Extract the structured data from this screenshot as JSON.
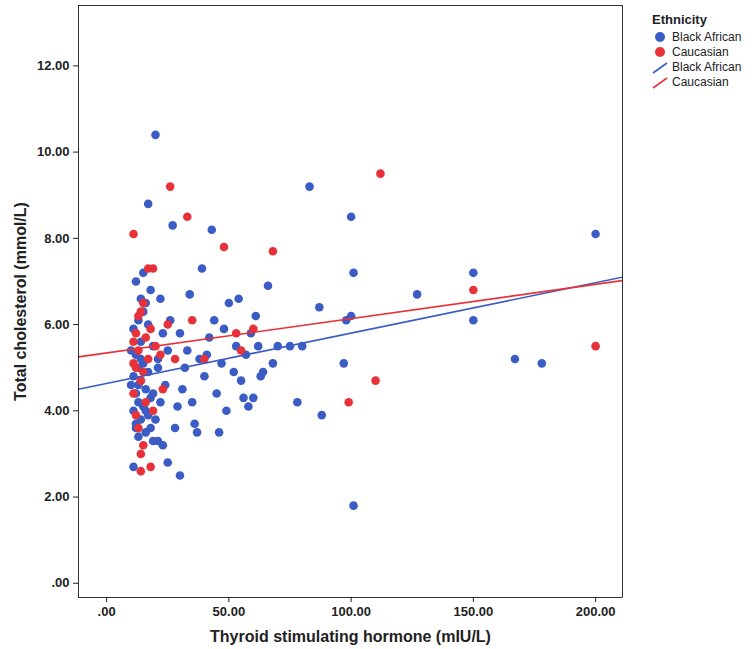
{
  "chart_data": {
    "type": "scatter",
    "x_label": "Thyroid stimulating hormone (mIU/L)",
    "y_label": "Total cholesterol (mmol/L)",
    "legend_title": "Ethnicity",
    "legend": "right",
    "grid": false,
    "xlim": [
      -11.5,
      211
    ],
    "ylim": [
      -0.33,
      13.4
    ],
    "xticks": [
      {
        "value": 0,
        "label": ".00"
      },
      {
        "value": 50,
        "label": "50.00"
      },
      {
        "value": 100,
        "label": "100.00"
      },
      {
        "value": 150,
        "label": "150.00"
      },
      {
        "value": 200,
        "label": "200.00"
      }
    ],
    "yticks": [
      {
        "value": 0,
        "label": ".00"
      },
      {
        "value": 2,
        "label": "2.00"
      },
      {
        "value": 4,
        "label": "4.00"
      },
      {
        "value": 6,
        "label": "6.00"
      },
      {
        "value": 8,
        "label": "8.00"
      },
      {
        "value": 10,
        "label": "10.00"
      },
      {
        "value": 12,
        "label": "12.00"
      }
    ],
    "series": [
      {
        "name": "Black African",
        "type": "scatter",
        "marker": "circle",
        "color": "#3a5cc4",
        "x": [
          20,
          17,
          12,
          15,
          18,
          14,
          16,
          13,
          17,
          11,
          14,
          19,
          12,
          15,
          13,
          17,
          11,
          14,
          16,
          12,
          18,
          13,
          15,
          11,
          17,
          14,
          12,
          16,
          13,
          19,
          11,
          21,
          23,
          20,
          22,
          24,
          21,
          25,
          23,
          26,
          22,
          27,
          25,
          30,
          28,
          29,
          31,
          32,
          33,
          30,
          34,
          35,
          36,
          37,
          38,
          39,
          40,
          41,
          42,
          43,
          44,
          45,
          46,
          47,
          48,
          49,
          50,
          52,
          53,
          54,
          55,
          56,
          57,
          58,
          59,
          60,
          61,
          62,
          63,
          64,
          66,
          68,
          70,
          75,
          78,
          80,
          83,
          87,
          88,
          97,
          98,
          100,
          100,
          101,
          101,
          127,
          150,
          150,
          167,
          178,
          200,
          10,
          12,
          14,
          16,
          18,
          10,
          13,
          15,
          19,
          21
        ],
        "values": [
          10.4,
          8.8,
          7.0,
          7.2,
          6.8,
          6.6,
          6.5,
          6.1,
          6.0,
          5.9,
          5.6,
          5.5,
          5.3,
          5.1,
          5.0,
          4.9,
          4.8,
          4.7,
          4.5,
          4.4,
          4.3,
          4.2,
          4.1,
          4.0,
          3.9,
          3.8,
          3.6,
          3.5,
          3.4,
          3.3,
          2.7,
          3.3,
          3.2,
          3.8,
          4.2,
          4.6,
          5.0,
          5.4,
          5.8,
          6.1,
          6.6,
          8.3,
          2.8,
          2.5,
          3.6,
          4.1,
          4.5,
          5.0,
          5.4,
          5.8,
          6.7,
          4.2,
          3.7,
          3.5,
          5.2,
          7.3,
          4.8,
          5.3,
          5.7,
          8.2,
          6.1,
          4.4,
          3.5,
          5.1,
          5.9,
          4.0,
          6.5,
          4.9,
          5.5,
          6.6,
          4.7,
          4.3,
          5.3,
          4.1,
          5.8,
          4.3,
          6.2,
          5.5,
          4.8,
          4.9,
          6.9,
          5.1,
          5.5,
          5.5,
          4.2,
          5.5,
          9.2,
          6.4,
          3.9,
          5.1,
          6.1,
          6.2,
          8.5,
          7.2,
          1.8,
          6.7,
          7.2,
          6.1,
          5.2,
          5.1,
          8.1,
          4.6,
          3.7,
          5.2,
          4.0,
          3.6,
          5.4,
          4.6,
          6.3,
          4.4,
          5.2
        ]
      },
      {
        "name": "Caucasian",
        "type": "scatter",
        "marker": "circle",
        "color": "#e8323a",
        "x": [
          11,
          26,
          33,
          48,
          68,
          112,
          17,
          19,
          15,
          13,
          14,
          12,
          18,
          11,
          16,
          13,
          20,
          12,
          15,
          17,
          14,
          11,
          16,
          12,
          13,
          15,
          14,
          18,
          19,
          23,
          22,
          25,
          28,
          35,
          40,
          53,
          55,
          60,
          99,
          110,
          150,
          200,
          11,
          14
        ],
        "values": [
          8.1,
          9.2,
          8.5,
          7.8,
          7.7,
          9.5,
          7.3,
          7.3,
          6.5,
          6.2,
          6.3,
          5.8,
          5.9,
          5.6,
          5.7,
          5.4,
          5.5,
          5.0,
          4.9,
          5.2,
          4.7,
          4.4,
          4.2,
          3.9,
          3.6,
          3.2,
          2.6,
          2.7,
          4.0,
          4.5,
          5.3,
          6.0,
          5.2,
          6.1,
          5.2,
          5.8,
          5.4,
          5.9,
          4.2,
          4.7,
          6.8,
          5.5,
          5.1,
          3.0
        ]
      },
      {
        "name": "Black African",
        "type": "line",
        "line_style": "solid",
        "color": "#3a5cc4",
        "x": [
          -11.5,
          211
        ],
        "values": [
          4.5,
          7.1
        ]
      },
      {
        "name": "Caucasian",
        "type": "line",
        "line_style": "solid",
        "color": "#e8323a",
        "x": [
          -11.5,
          211
        ],
        "values": [
          5.25,
          7.02
        ]
      }
    ]
  }
}
